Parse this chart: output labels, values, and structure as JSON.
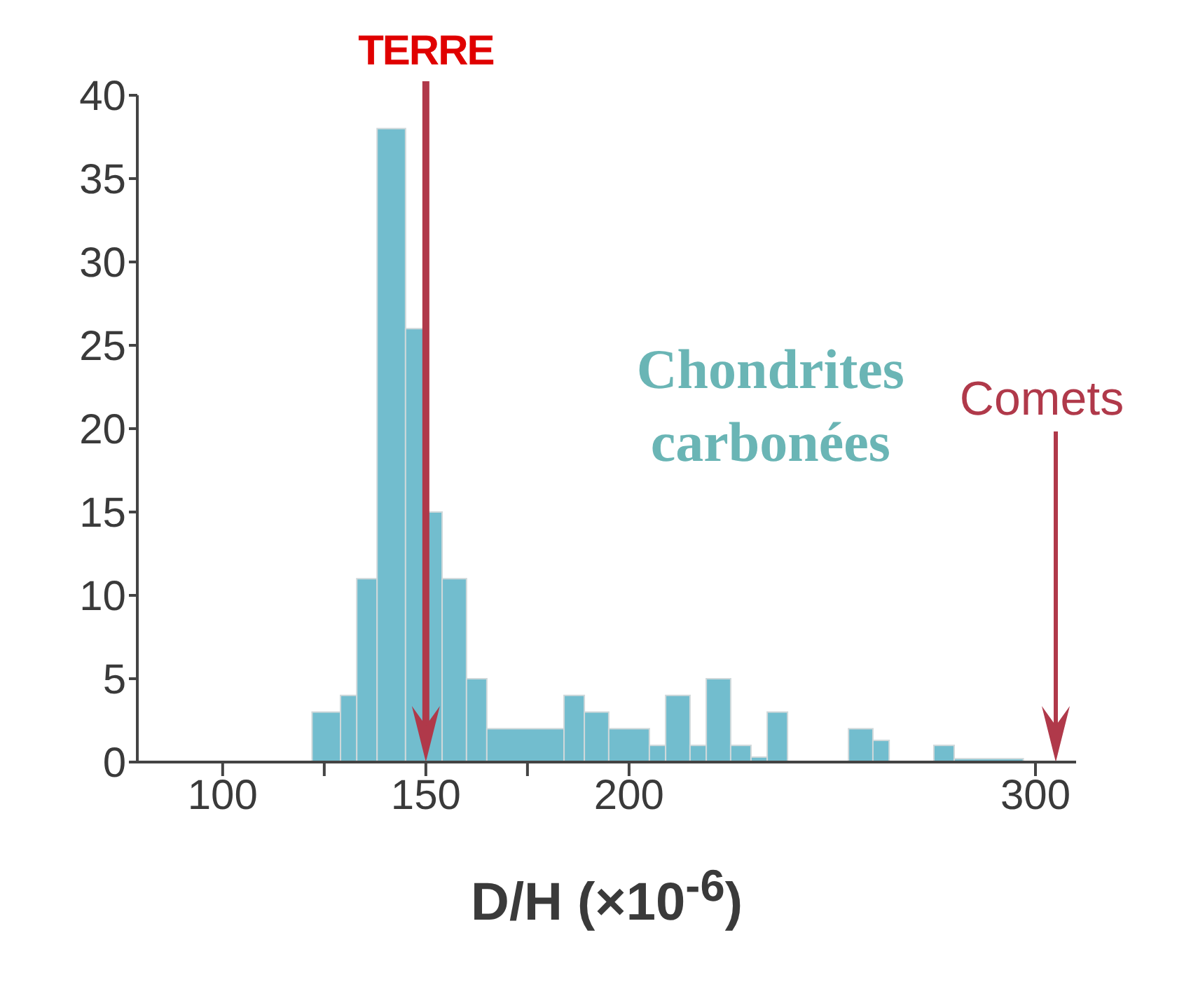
{
  "chart_data": {
    "type": "histogram",
    "xlabel": "D/H (×10$^{-6}$)",
    "bins": [
      122,
      129,
      133,
      138,
      145,
      150,
      154,
      160,
      165,
      184,
      189,
      195,
      205,
      209,
      215,
      219,
      225,
      230,
      234,
      239,
      254,
      260,
      264,
      275,
      280,
      297
    ],
    "values": [
      3,
      4,
      11,
      38,
      26,
      15,
      11,
      5,
      2,
      4,
      3,
      2,
      1,
      4,
      1,
      5,
      1,
      0.3,
      3,
      0,
      2,
      1.3,
      0,
      1,
      0.2
    ],
    "color": "#72bdce",
    "xlim": [
      79,
      310
    ],
    "xticks": [
      100,
      {
        "value": 125,
        "label": null
      },
      150,
      {
        "value": 175,
        "label": null
      },
      200,
      300
    ],
    "ylim": [
      0,
      40
    ],
    "yticks": [
      0,
      5,
      10,
      15,
      20,
      25,
      30,
      35,
      40
    ],
    "ref_lines": [
      {
        "axis": "x",
        "value": 150,
        "label": "TERRE",
        "color": "#b0394a"
      },
      {
        "axis": "x",
        "value": 305,
        "label": "Comets",
        "color": "#b0394a"
      }
    ],
    "annotations": [
      "Chondrites carbonées"
    ],
    "grid": false,
    "legend": false
  }
}
